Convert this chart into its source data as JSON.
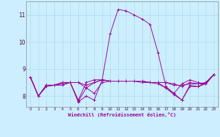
{
  "xlabel": "Windchill (Refroidissement éolien,°C)",
  "background_color": "#cceeff",
  "line_color": "#990099",
  "grid_color": "#aadddd",
  "xlim": [
    -0.5,
    23.5
  ],
  "ylim": [
    7.6,
    11.5
  ],
  "yticks": [
    8,
    9,
    10,
    11
  ],
  "xticks": [
    0,
    1,
    2,
    3,
    4,
    5,
    6,
    7,
    8,
    9,
    10,
    11,
    12,
    13,
    14,
    15,
    16,
    17,
    18,
    19,
    20,
    21,
    22,
    23
  ],
  "lines": [
    [
      8.7,
      8.0,
      8.4,
      8.4,
      8.5,
      8.5,
      7.8,
      8.3,
      8.5,
      8.6,
      10.3,
      11.2,
      11.15,
      11.0,
      10.85,
      10.65,
      9.6,
      8.35,
      8.1,
      8.45,
      8.6,
      8.5,
      8.45,
      8.8
    ],
    [
      8.7,
      8.0,
      8.4,
      8.4,
      8.5,
      8.5,
      7.85,
      8.5,
      8.6,
      8.6,
      8.55,
      8.55,
      8.55,
      8.55,
      8.55,
      8.5,
      8.5,
      8.5,
      8.4,
      8.4,
      8.45,
      8.45,
      8.5,
      8.8
    ],
    [
      8.7,
      8.0,
      8.4,
      8.4,
      8.4,
      8.5,
      8.5,
      8.3,
      8.1,
      8.5,
      8.55,
      8.55,
      8.55,
      8.55,
      8.55,
      8.5,
      8.45,
      8.3,
      8.05,
      7.85,
      8.35,
      8.35,
      8.45,
      8.8
    ],
    [
      8.7,
      8.0,
      8.4,
      8.4,
      8.5,
      8.5,
      7.78,
      8.0,
      7.85,
      8.6,
      8.55,
      8.55,
      8.55,
      8.55,
      8.5,
      8.5,
      8.5,
      8.3,
      8.1,
      7.85,
      8.4,
      8.35,
      8.5,
      8.8
    ],
    [
      8.7,
      8.0,
      8.35,
      8.4,
      8.45,
      8.5,
      8.5,
      8.4,
      8.5,
      8.6,
      8.55,
      8.55,
      8.55,
      8.55,
      8.55,
      8.5,
      8.5,
      8.5,
      8.45,
      8.35,
      8.5,
      8.45,
      8.45,
      8.8
    ]
  ],
  "figsize": [
    3.2,
    2.0
  ],
  "dpi": 100
}
